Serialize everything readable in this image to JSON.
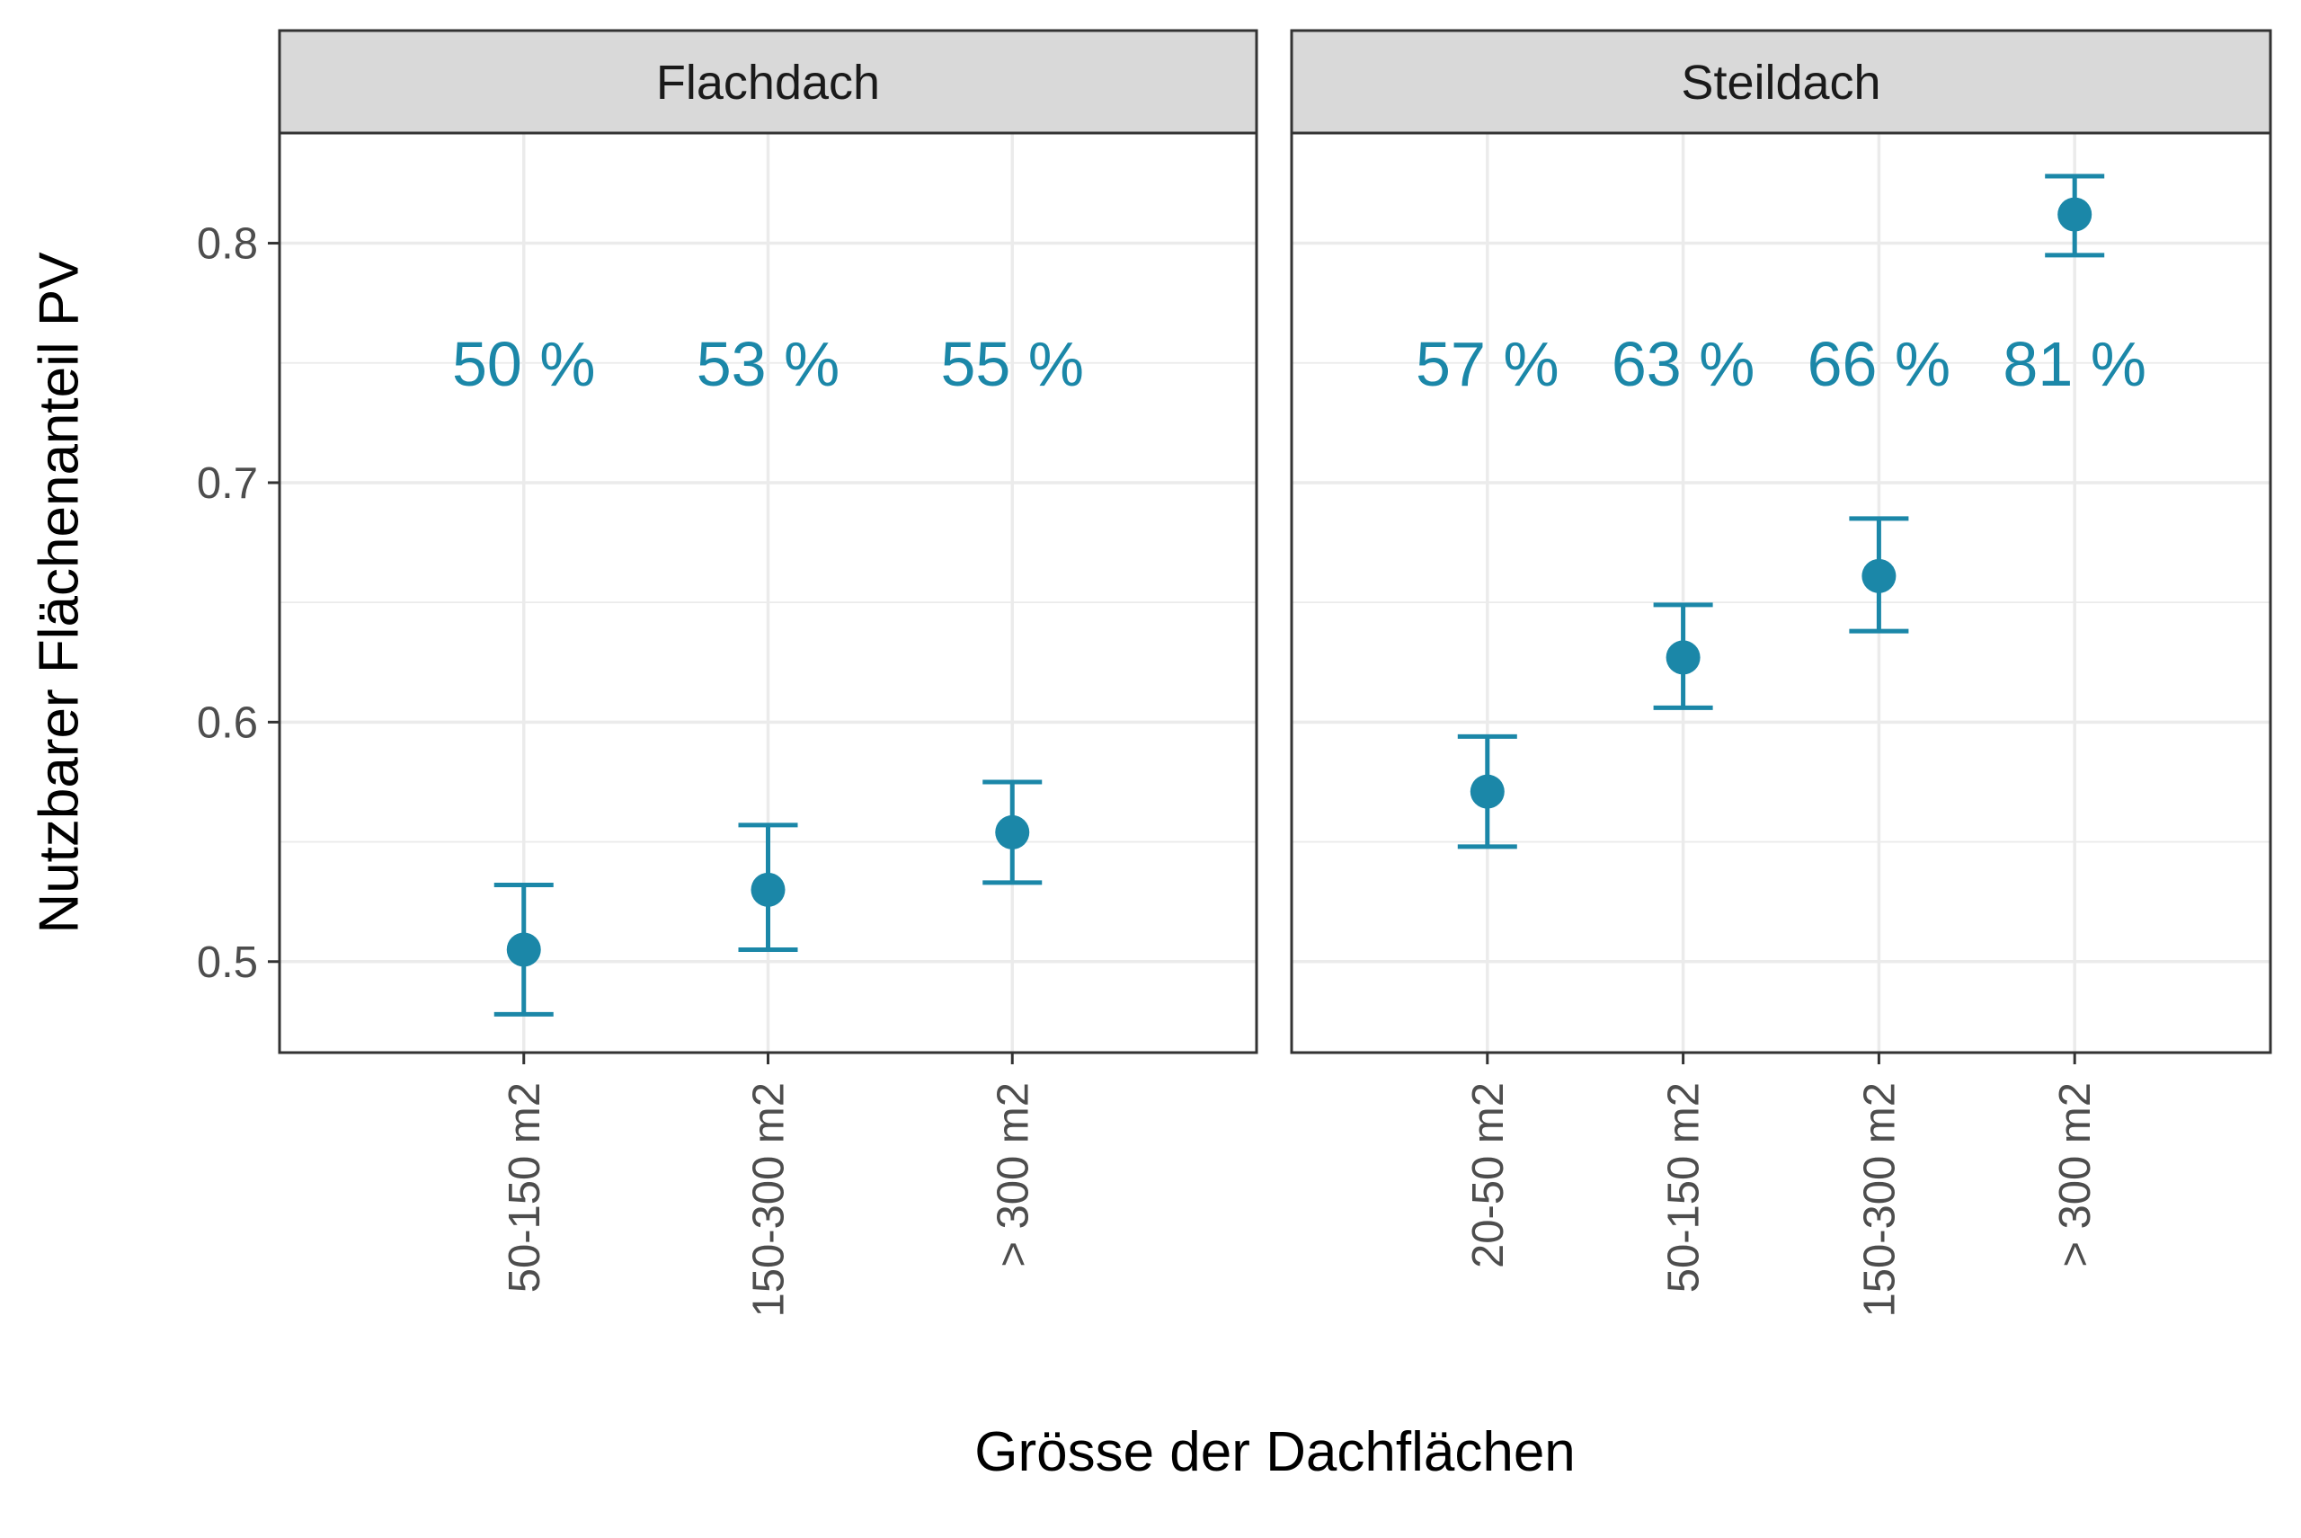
{
  "chart_data": {
    "type": "errorbar",
    "xlabel": "Grösse der Dachflächen",
    "ylabel": "Nutzbarer Flächenanteil PV",
    "ylim": [
      0.462,
      0.846
    ],
    "yticks": [
      "0.5",
      "0.6",
      "0.7",
      "0.8"
    ],
    "grid": true,
    "legend": "none",
    "colors": {
      "point": "#1b87a8",
      "label": "#1b87a8"
    },
    "label_y": 0.75,
    "panels": [
      {
        "title": "Flachdach",
        "categories": [
          "50-150 m2",
          "150-300 m2",
          "> 300 m2"
        ],
        "values": [
          0.505,
          0.53,
          0.554
        ],
        "lower": [
          0.478,
          0.505,
          0.533
        ],
        "upper": [
          0.532,
          0.557,
          0.575
        ],
        "labels": [
          "50 %",
          "53 %",
          "55 %"
        ]
      },
      {
        "title": "Steildach",
        "categories": [
          "20-50 m2",
          "50-150 m2",
          "150-300 m2",
          "> 300 m2"
        ],
        "values": [
          0.571,
          0.627,
          0.661,
          0.812
        ],
        "lower": [
          0.548,
          0.606,
          0.638,
          0.795
        ],
        "upper": [
          0.594,
          0.649,
          0.685,
          0.828
        ],
        "labels": [
          "57 %",
          "63 %",
          "66 %",
          "81 %"
        ]
      }
    ]
  }
}
